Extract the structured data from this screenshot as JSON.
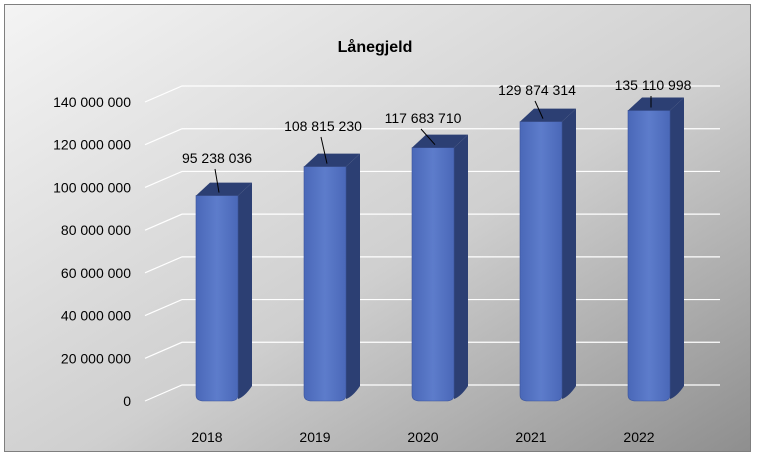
{
  "chart_data": {
    "type": "bar",
    "title": "Lånegjeld",
    "categories": [
      "2018",
      "2019",
      "2020",
      "2021",
      "2022"
    ],
    "values": [
      95238036,
      108815230,
      117683710,
      129874314,
      135110998
    ],
    "data_labels": [
      "95 238 036",
      "108 815 230",
      "117 683 710",
      "129 874 314",
      "135 110 998"
    ],
    "yticks": [
      0,
      20000000,
      40000000,
      60000000,
      80000000,
      100000000,
      120000000,
      140000000
    ],
    "ytick_labels": [
      "0",
      "20 000 000",
      "40 000 000",
      "60 000 000",
      "80 000 000",
      "100 000 000",
      "120 000 000",
      "140 000 000"
    ],
    "ylim": [
      0,
      140000000
    ],
    "xlabel": "",
    "ylabel": "",
    "grid": true,
    "legend": "none",
    "style": "3d-cylinder-bars",
    "colors": {
      "bar_front": "#4a68b8",
      "bar_side": "#2c3f73",
      "bar_top": "#5d7ccb",
      "background_light": "#f4f4f4",
      "background_dark": "#8e8e8e",
      "gridline": "#ffffff"
    }
  }
}
